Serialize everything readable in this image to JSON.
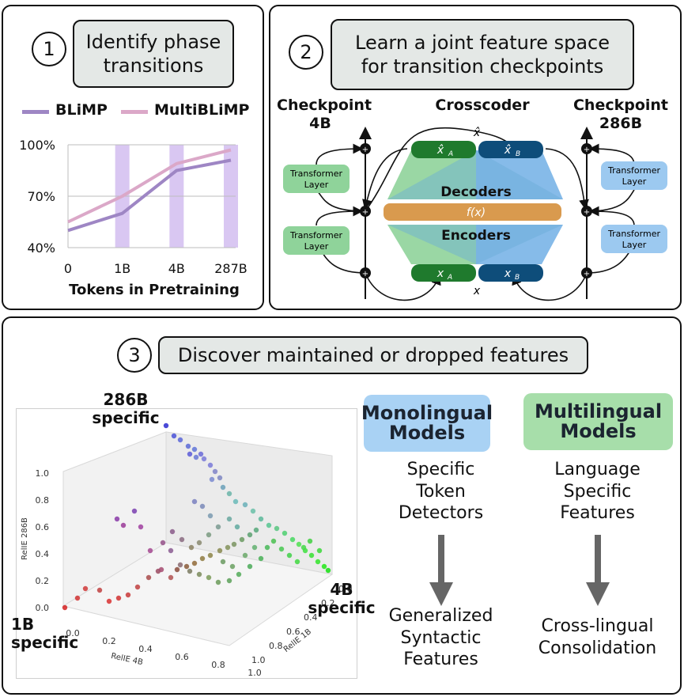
{
  "panel1": {
    "number": "1",
    "title_line1": "Identify phase",
    "title_line2": "transitions",
    "legend": [
      {
        "label": "BLiMP",
        "color": "#9e86c4"
      },
      {
        "label": "MultiBLiMP",
        "color": "#dba8c8"
      }
    ],
    "xlabel": "Tokens in Pretraining"
  },
  "chart_data": {
    "type": "line",
    "categories": [
      "0",
      "1B",
      "4B",
      "287B"
    ],
    "series": [
      {
        "name": "BLiMP",
        "values": [
          50,
          60,
          85,
          91
        ],
        "color": "#9e86c4"
      },
      {
        "name": "MultiBLiMP",
        "values": [
          55,
          70,
          89,
          97
        ],
        "color": "#dba8c8"
      }
    ],
    "yticks": [
      "100%",
      "70%",
      "40%"
    ],
    "ylim": [
      40,
      100
    ],
    "highlight_columns": [
      "1B",
      "4B",
      "287B"
    ],
    "xlabel": "Tokens in Pretraining",
    "ylabel": "",
    "grid": true,
    "legend_position": "top"
  },
  "panel2": {
    "number": "2",
    "title_line1": "Learn a joint feature space",
    "title_line2": "for transition checkpoints",
    "left_title_line1": "Checkpoint",
    "left_title_line2": "4B",
    "right_title_line1": "Checkpoint",
    "right_title_line2": "286B",
    "center_title": "Crosscoder",
    "layer_label_line1": "Transformer",
    "layer_label_line2": "Layer",
    "decoders": "Decoders",
    "encoders": "Encoders",
    "fx": "f(x)",
    "x_hat": "x̂",
    "x_hat_a": "x̂",
    "x_hat_b": "x̂",
    "x_a": "x",
    "x_b": "x",
    "sub_a": "A",
    "sub_b": "B",
    "x": "x",
    "plus": "+",
    "colors": {
      "green": "#1f7a2d",
      "blue": "#0e4d7a",
      "green_layer": "#8fd39a",
      "blue_layer": "#9cc9f0",
      "orange": "#d99a4e"
    }
  },
  "panel3": {
    "number": "3",
    "title": "Discover maintained or dropped features",
    "label_286b_line1": "286B",
    "label_286b_line2": "specific",
    "label_4b_line1": "4B",
    "label_4b_line2": "specific",
    "label_1b_line1": "1B",
    "label_1b_line2": "specific",
    "z_axis_label": "RelIE 286B",
    "x_axis_label": "RelIE 4B",
    "y_axis_label": "RelIE 1B",
    "z_ticks": [
      "1.0",
      "0.8",
      "0.6",
      "0.4",
      "0.2",
      "0.0"
    ],
    "x_ticks": [
      "0.0",
      "0.2",
      "0.4",
      "0.6",
      "0.8",
      "1.0"
    ],
    "y_ticks": [
      "0.0",
      "0.2",
      "0.4",
      "0.6",
      "0.8",
      "1.0"
    ],
    "mono": {
      "title_line1": "Monolingual",
      "title_line2": "Models",
      "color": "#a9d2f4",
      "desc_top": [
        "Specific",
        "Token",
        "Detectors"
      ],
      "desc_bottom": [
        "Generalized",
        "Syntactic",
        "Features"
      ]
    },
    "multi": {
      "title_line1": "Multilingual",
      "title_line2": "Models",
      "color": "#a7deaa",
      "desc_top": [
        "Language",
        "Specific",
        "Features"
      ],
      "desc_bottom": [
        "Cross-lingual",
        "Consolidation"
      ]
    }
  }
}
